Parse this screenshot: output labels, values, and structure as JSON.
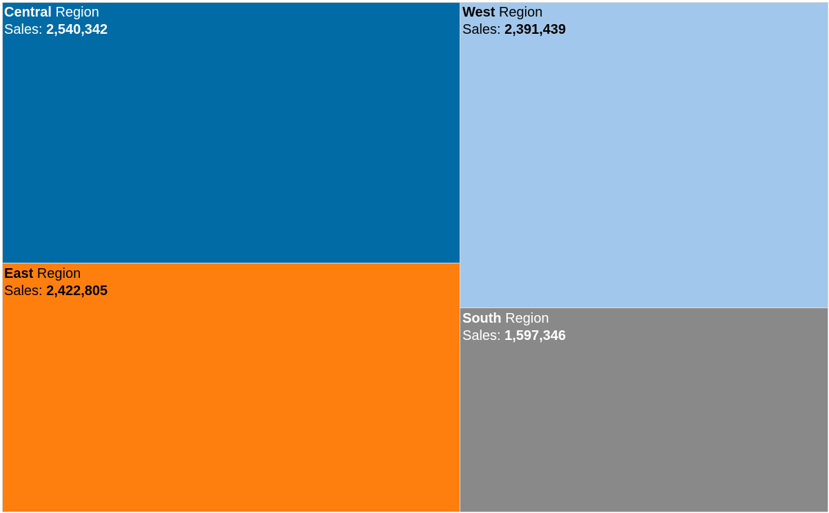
{
  "chart_data": {
    "type": "treemap",
    "sales_label": "Sales: ",
    "region_suffix": " Region",
    "regions": [
      {
        "name": "Central",
        "sales": 2540342,
        "sales_text": "2,540,342",
        "color": "#016BA6",
        "text_color": "#ffffff"
      },
      {
        "name": "East",
        "sales": 2422805,
        "sales_text": "2,422,805",
        "color": "#FF7F0E",
        "text_color": "#000000"
      },
      {
        "name": "West",
        "sales": 2391439,
        "sales_text": "2,391,439",
        "color": "#A1C8EC",
        "text_color": "#000000"
      },
      {
        "name": "South",
        "sales": 1597346,
        "sales_text": "1,597,346",
        "color": "#898989",
        "text_color": "#ffffff"
      }
    ]
  }
}
